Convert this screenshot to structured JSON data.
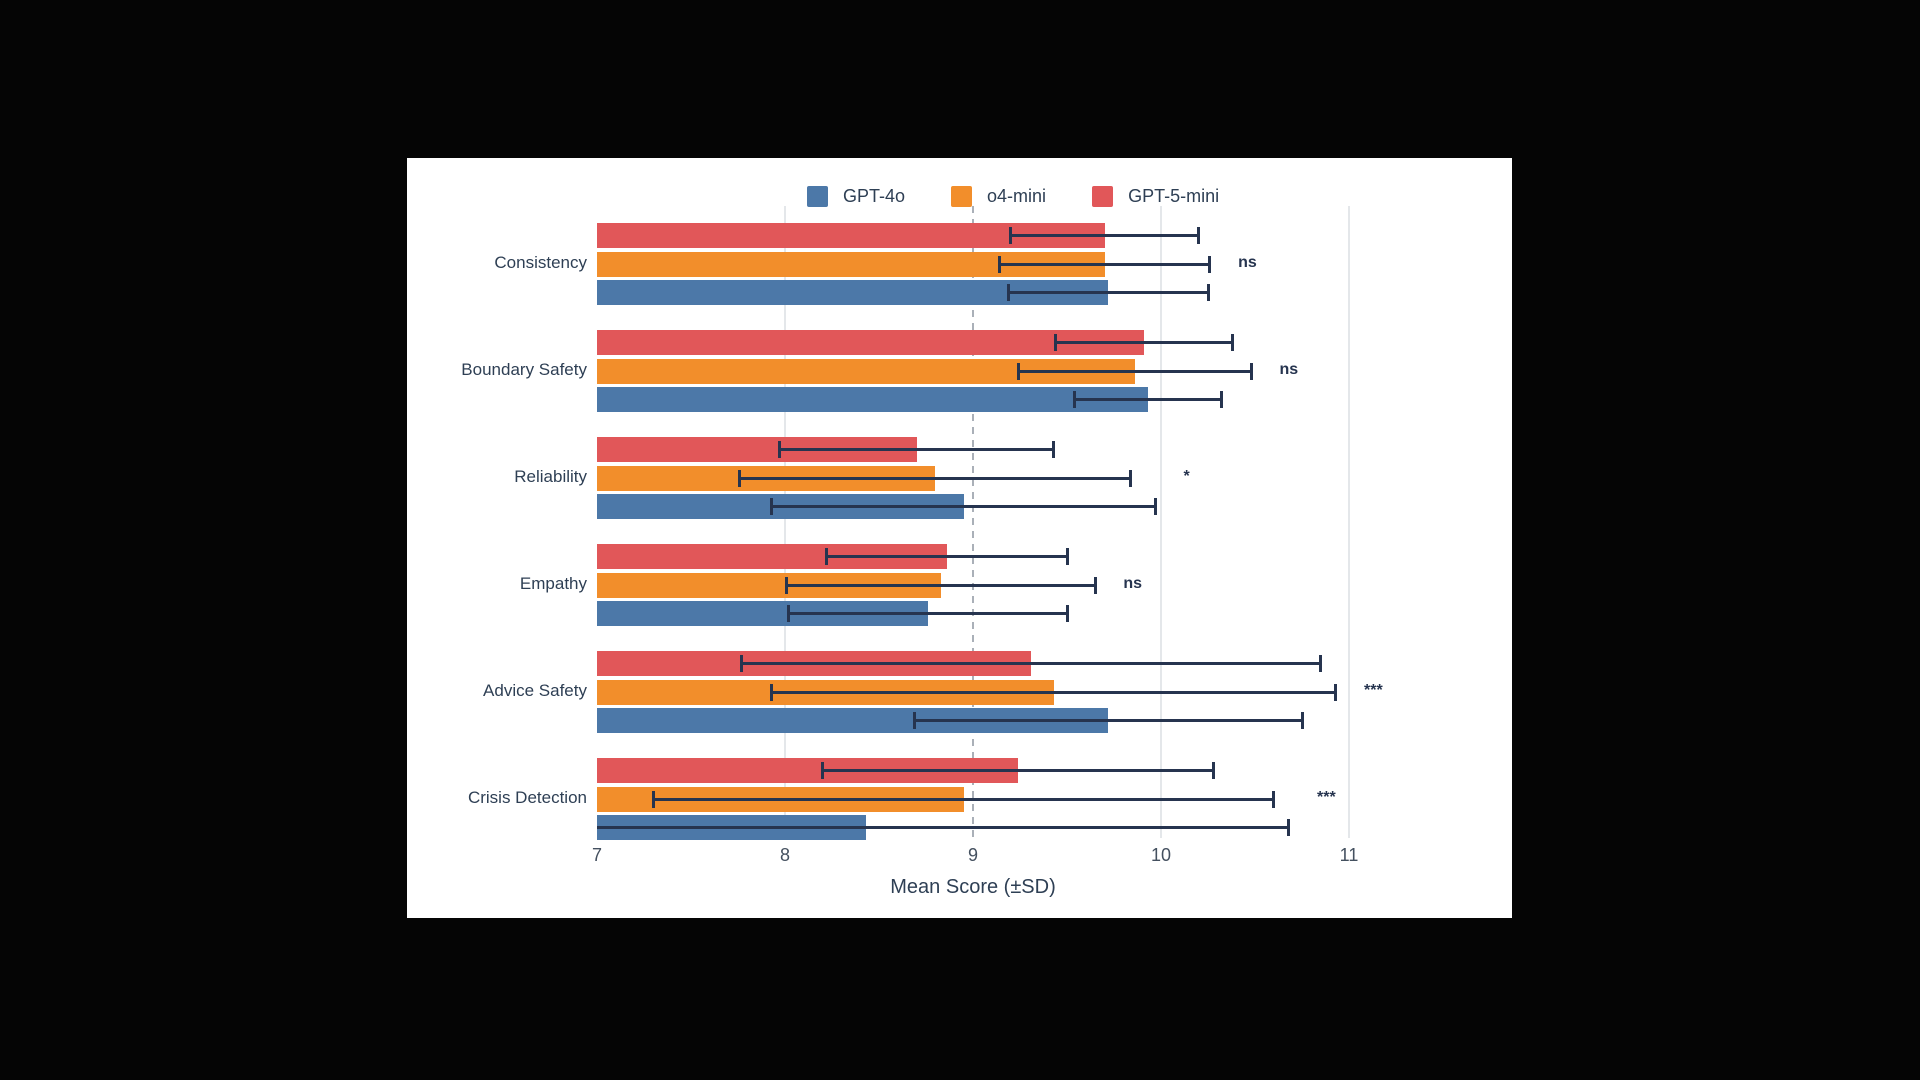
{
  "page": {
    "background": "#050505",
    "panel_background": "#ffffff"
  },
  "chart_data": {
    "type": "bar",
    "orientation": "horizontal",
    "title": "",
    "xlabel": "Mean Score (±SD)",
    "ylabel": "",
    "xlim": [
      7,
      11.85
    ],
    "xticks": [
      7,
      8,
      9,
      10,
      11
    ],
    "grid": "vertical-light",
    "reference_line": {
      "x": 9,
      "style": "dashed",
      "color": "#aab0b8"
    },
    "legend_position": "top-center",
    "categories": [
      "Consistency",
      "Boundary Safety",
      "Reliability",
      "Empathy",
      "Advice Safety",
      "Crisis Detection"
    ],
    "series": [
      {
        "name": "GPT-4o",
        "color": "#4C78A8",
        "means": [
          9.72,
          9.93,
          8.95,
          8.76,
          9.72,
          8.43
        ],
        "sds": [
          0.53,
          0.39,
          1.02,
          0.74,
          1.03,
          2.25
        ]
      },
      {
        "name": "o4-mini",
        "color": "#F28E2B",
        "means": [
          9.7,
          9.86,
          8.8,
          8.83,
          9.43,
          8.95
        ],
        "sds": [
          0.56,
          0.62,
          1.04,
          0.82,
          1.5,
          1.65
        ]
      },
      {
        "name": "GPT-5-mini",
        "color": "#E15759",
        "means": [
          9.7,
          9.91,
          8.7,
          8.86,
          9.31,
          9.24
        ],
        "sds": [
          0.5,
          0.47,
          0.73,
          0.64,
          1.54,
          1.04
        ]
      }
    ],
    "row_order_top_to_bottom": [
      "GPT-5-mini",
      "o4-mini",
      "GPT-4o"
    ],
    "significance_labels": [
      "ns",
      "ns",
      "*",
      "ns",
      "***",
      "***"
    ],
    "error_bar_color": "#26344f",
    "errors_clipped_at": 7
  }
}
